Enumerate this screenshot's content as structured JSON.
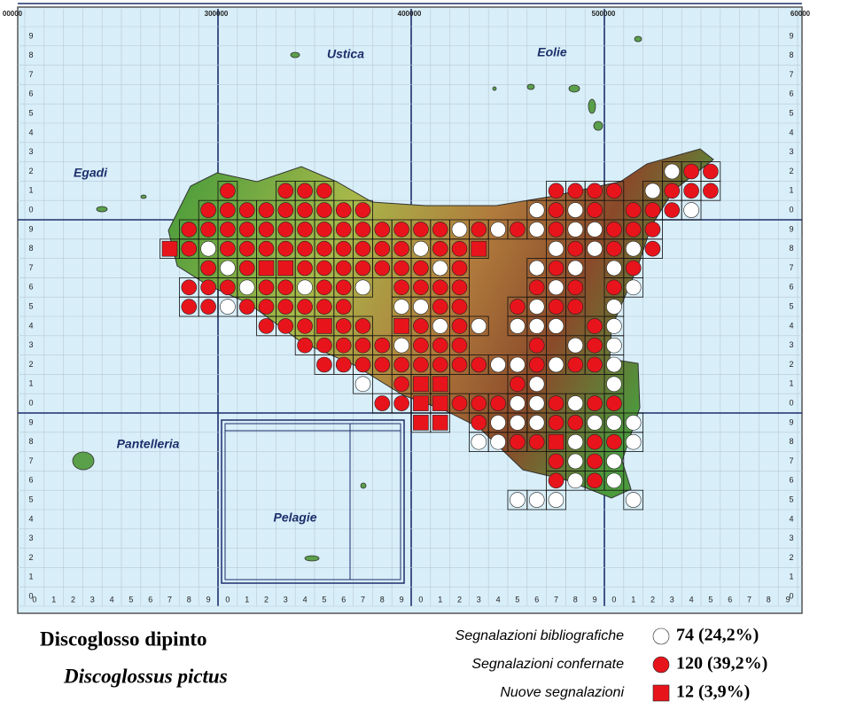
{
  "coordinates": [
    "00000",
    "300000",
    "400000",
    "500000",
    "60000"
  ],
  "grid_digits": [
    "0",
    "1",
    "2",
    "3",
    "4",
    "5",
    "6",
    "7",
    "8",
    "9"
  ],
  "islands": {
    "ustica": "Ustica",
    "eolie": "Eolie",
    "egadi": "Egadi",
    "pantelleria": "Pantelleria",
    "pelagie": "Pelagie"
  },
  "title": "Discoglosso dipinto",
  "subtitle": "Discoglossus pictus",
  "legend": [
    {
      "label": "Segnalazioni bibliografiche",
      "count": "74 (24,2%)"
    },
    {
      "label": "Segnalazioni confernate",
      "count": "120 (39,2%)"
    },
    {
      "label": "Nuove segnalazioni",
      "count": "12 (3,9%)"
    }
  ]
}
